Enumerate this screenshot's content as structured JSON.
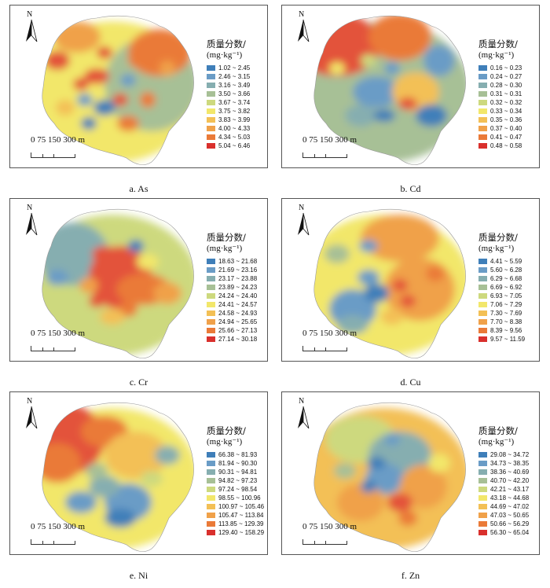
{
  "legend_title": "质量分数/",
  "legend_unit": "(mg·kg⁻¹)",
  "north_letter": "N",
  "scale_label": "0 75 150 300 m",
  "ramp": [
    "#3f7fb9",
    "#6a9cc6",
    "#86aeb0",
    "#a7c096",
    "#cdd97e",
    "#f2e76b",
    "#f3c056",
    "#f0a14a",
    "#ea7a38",
    "#e3533a",
    "#d9302d"
  ],
  "panels": [
    {
      "caption": "a.  As",
      "classes": [
        "1.02 ~ 2.45",
        "2.46 ~ 3.15",
        "3.16 ~ 3.49",
        "3.50 ~ 3.66",
        "3.67 ~ 3.74",
        "3.75 ~ 3.82",
        "3.83 ~ 3.99",
        "4.00 ~ 4.33",
        "4.34 ~ 5.03",
        "5.04 ~ 6.46"
      ]
    },
    {
      "caption": "b.  Cd",
      "classes": [
        "0.16 ~ 0.23",
        "0.24 ~ 0.27",
        "0.28 ~ 0.30",
        "0.31 ~ 0.31",
        "0.32 ~ 0.32",
        "0.33 ~ 0.34",
        "0.35 ~ 0.36",
        "0.37 ~ 0.40",
        "0.41 ~ 0.47",
        "0.48 ~ 0.58"
      ]
    },
    {
      "caption": "c.  Cr",
      "classes": [
        "18.63 ~ 21.68",
        "21.69 ~ 23.16",
        "23.17 ~ 23.88",
        "23.89 ~ 24.23",
        "24.24 ~ 24.40",
        "24.41 ~ 24.57",
        "24.58 ~ 24.93",
        "24.94 ~ 25.65",
        "25.66 ~ 27.13",
        "27.14 ~ 30.18"
      ]
    },
    {
      "caption": "d.  Cu",
      "classes": [
        "4.41 ~ 5.59",
        "5.60 ~ 6.28",
        "6.29 ~ 6.68",
        "6.69 ~ 6.92",
        "6.93 ~ 7.05",
        "7.06 ~ 7.29",
        "7.30 ~ 7.69",
        "7.70 ~ 8.38",
        "8.39 ~ 9.56",
        "9.57 ~ 11.59"
      ]
    },
    {
      "caption": "e.  Ni",
      "classes": [
        "66.38 ~ 81.93",
        "81.94 ~ 90.30",
        "90.31 ~ 94.81",
        "94.82 ~ 97.23",
        "97.24 ~ 98.54",
        "98.55 ~ 100.96",
        "100.97 ~ 105.46",
        "105.47 ~ 113.84",
        "113.85 ~ 129.39",
        "129.40 ~ 158.29"
      ]
    },
    {
      "caption": "f.  Zn",
      "classes": [
        "29.08 ~ 34.72",
        "34.73 ~ 38.35",
        "38.36 ~ 40.69",
        "40.70 ~ 42.20",
        "42.21 ~ 43.17",
        "43.18 ~ 44.68",
        "44.69 ~ 47.02",
        "47.03 ~ 50.65",
        "50.66 ~ 56.29",
        "56.30 ~ 65.04"
      ]
    }
  ]
}
